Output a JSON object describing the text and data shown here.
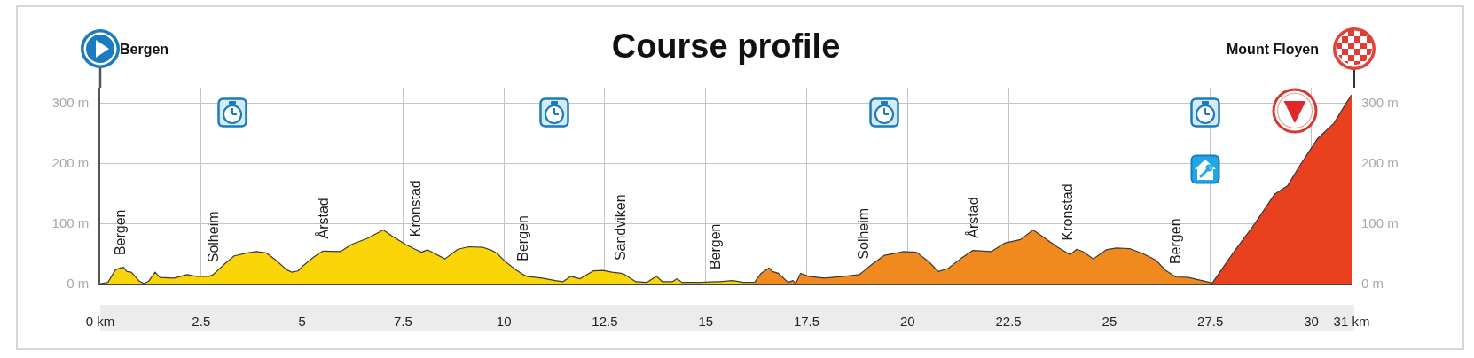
{
  "chart_data": {
    "type": "area",
    "title": "Course profile",
    "series": [
      {
        "color": "#f9d406",
        "x": [
          0,
          0.19,
          0.38,
          0.5,
          0.58,
          0.66,
          0.77,
          0.97,
          1.09,
          1.2,
          1.36,
          1.48,
          1.83,
          2.15,
          2.38,
          2.7,
          2.8,
          2.93,
          3.09,
          3.32,
          3.64,
          3.87,
          4.11,
          4.35,
          4.62,
          4.74,
          4.9,
          5.05,
          5.29,
          5.52,
          5.95,
          6.23,
          6.62,
          7.01,
          7.25,
          7.56,
          7.8,
          7.96,
          8.11,
          8.31,
          8.54,
          8.86,
          9.13,
          9.49,
          9.7,
          9.83,
          10.01,
          10.29,
          10.45,
          10.56,
          10.95,
          11.27,
          11.46,
          11.66,
          11.89,
          12.21,
          12.45,
          12.68,
          12.9,
          12.99,
          13.27,
          13.54,
          13.78,
          13.93,
          14.17,
          14.29,
          14.41,
          14.88,
          15.25,
          15.35,
          15.66,
          15.94,
          16.21
        ],
        "values": [
          0,
          2,
          23,
          26,
          27,
          20,
          19,
          4,
          0,
          4,
          19,
          10,
          9,
          15,
          12,
          12,
          15,
          23,
          33,
          46,
          51,
          53,
          51,
          39,
          23,
          19,
          21,
          31,
          44,
          54,
          53,
          65,
          75,
          89,
          78,
          65,
          57,
          52,
          56,
          49,
          41,
          57,
          61,
          60,
          55,
          50,
          38,
          23,
          16,
          12,
          9,
          5,
          3,
          12,
          8,
          21,
          22,
          19,
          17,
          15,
          3,
          2,
          12,
          3,
          3,
          8,
          2,
          2,
          3,
          3,
          5,
          2,
          2
        ]
      },
      {
        "color": "#f08a1f",
        "x": [
          16.21,
          16.37,
          16.57,
          16.65,
          16.8,
          17.04,
          17.16,
          17.23,
          17.35,
          17.55,
          17.94,
          18.41,
          18.81,
          18.9,
          19.12,
          19.43,
          19.9,
          20.22,
          20.53,
          20.76,
          21.0,
          21.31,
          21.62,
          22.07,
          22.4,
          22.8,
          23.11,
          23.37,
          23.7,
          23.95,
          24.03,
          24.19,
          24.35,
          24.6,
          24.92,
          25.17,
          25.5,
          25.82,
          26.15,
          26.39,
          26.64,
          26.96,
          27.29,
          27.55
        ],
        "values": [
          2,
          17,
          26,
          20,
          17,
          2,
          5,
          0,
          17,
          12,
          9,
          12,
          15,
          20,
          32,
          47,
          53,
          52,
          36,
          20,
          25,
          41,
          55,
          53,
          67,
          73,
          89,
          77,
          61,
          51,
          48,
          57,
          53,
          41,
          56,
          59,
          58,
          50,
          39,
          22,
          11,
          10,
          5,
          1
        ]
      },
      {
        "color": "#e9401f",
        "x": [
          27.55,
          28.11,
          28.6,
          29.09,
          29.41,
          29.74,
          30.15,
          30.56,
          30.89,
          31
        ],
        "values": [
          1,
          55,
          99,
          148,
          162,
          198,
          240,
          266,
          302,
          313
        ]
      }
    ],
    "xlim": [
      0,
      31
    ],
    "xticks": [
      {
        "value": 0,
        "label": "0 km"
      },
      2.5,
      5,
      7.5,
      10,
      12.5,
      15,
      17.5,
      20,
      22.5,
      25,
      27.5,
      30,
      {
        "value": 31,
        "label": "31 km"
      }
    ],
    "ylim": [
      0,
      325
    ],
    "yticks": [
      {
        "value": 0,
        "label": "0 m"
      },
      {
        "value": 100,
        "label": "100 m"
      },
      {
        "value": 200,
        "label": "200 m"
      },
      {
        "value": 300,
        "label": "300 m"
      }
    ],
    "y2lim": [
      0,
      325
    ],
    "y2ticks": [
      {
        "value": 0,
        "label": "0 m"
      },
      {
        "value": 100,
        "label": "100 m"
      },
      {
        "value": 200,
        "label": "200 m"
      },
      {
        "value": 300,
        "label": "300 m"
      }
    ],
    "grid": true,
    "annotations": [
      "Bergen",
      "Mount Floyen",
      {
        "text": "Bergen",
        "x": 0.5,
        "y": 26
      },
      {
        "text": "Solheim",
        "x": 2.8,
        "y": 15
      },
      {
        "text": "Årstad",
        "x": 5.52,
        "y": 54
      },
      {
        "text": "Kronstad",
        "x": 7.8,
        "y": 57
      },
      {
        "text": "Bergen",
        "x": 10.45,
        "y": 16
      },
      {
        "text": "Sandviken",
        "x": 12.9,
        "y": 17
      },
      {
        "text": "Bergen",
        "x": 15.25,
        "y": 3
      },
      {
        "text": "Solheim",
        "x": 18.9,
        "y": 20
      },
      {
        "text": "Årstad",
        "x": 21.62,
        "y": 55
      },
      {
        "text": "Kronstad",
        "x": 23.95,
        "y": 51
      },
      {
        "text": "Bergen",
        "x": 26.64,
        "y": 11
      }
    ]
  }
}
